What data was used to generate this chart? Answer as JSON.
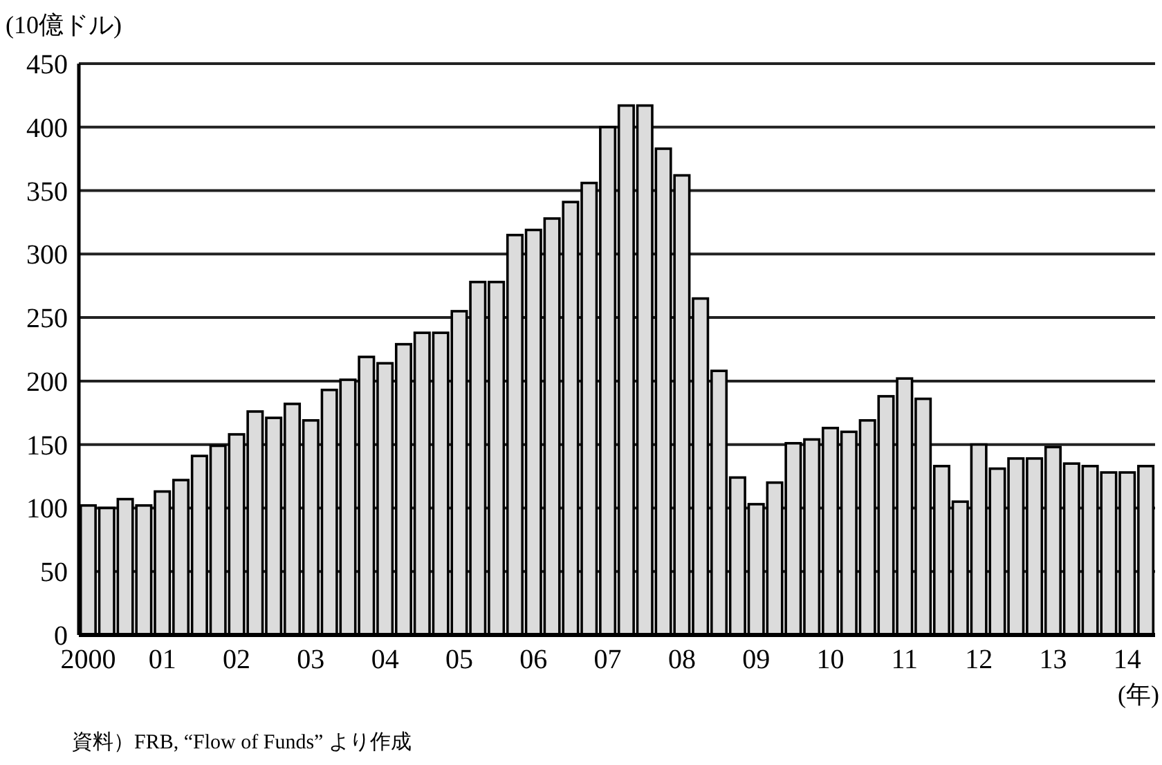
{
  "chart_data": {
    "type": "bar",
    "ylabel": "(10億ドル)",
    "xlabel": "(年)",
    "annotations": [
      "資料）FRB, “Flow of Funds” より作成"
    ],
    "categories": [
      "2000",
      null,
      null,
      null,
      "01",
      null,
      null,
      null,
      "02",
      null,
      null,
      null,
      "03",
      null,
      null,
      null,
      "04",
      null,
      null,
      null,
      "05",
      null,
      null,
      null,
      "06",
      null,
      null,
      null,
      "07",
      null,
      null,
      null,
      "08",
      null,
      null,
      null,
      "09",
      null,
      null,
      null,
      "10",
      null,
      null,
      null,
      "11",
      null,
      null,
      null,
      "12",
      null,
      null,
      null,
      "13",
      null,
      null,
      null,
      "14",
      null
    ],
    "values": [
      102,
      100,
      107,
      102,
      113,
      122,
      141,
      149,
      158,
      176,
      171,
      182,
      169,
      193,
      201,
      219,
      214,
      229,
      238,
      238,
      255,
      278,
      278,
      315,
      319,
      328,
      341,
      356,
      400,
      417,
      417,
      383,
      362,
      265,
      208,
      124,
      103,
      120,
      151,
      154,
      163,
      160,
      169,
      188,
      202,
      186,
      133,
      105,
      150,
      131,
      139,
      139,
      148,
      135,
      133,
      128,
      128,
      133
    ],
    "color": "#dcdcdc",
    "ylim": [
      0,
      450
    ],
    "yticks": [
      0,
      50,
      100,
      150,
      200,
      250,
      300,
      350,
      400,
      450
    ],
    "grid": "y"
  }
}
